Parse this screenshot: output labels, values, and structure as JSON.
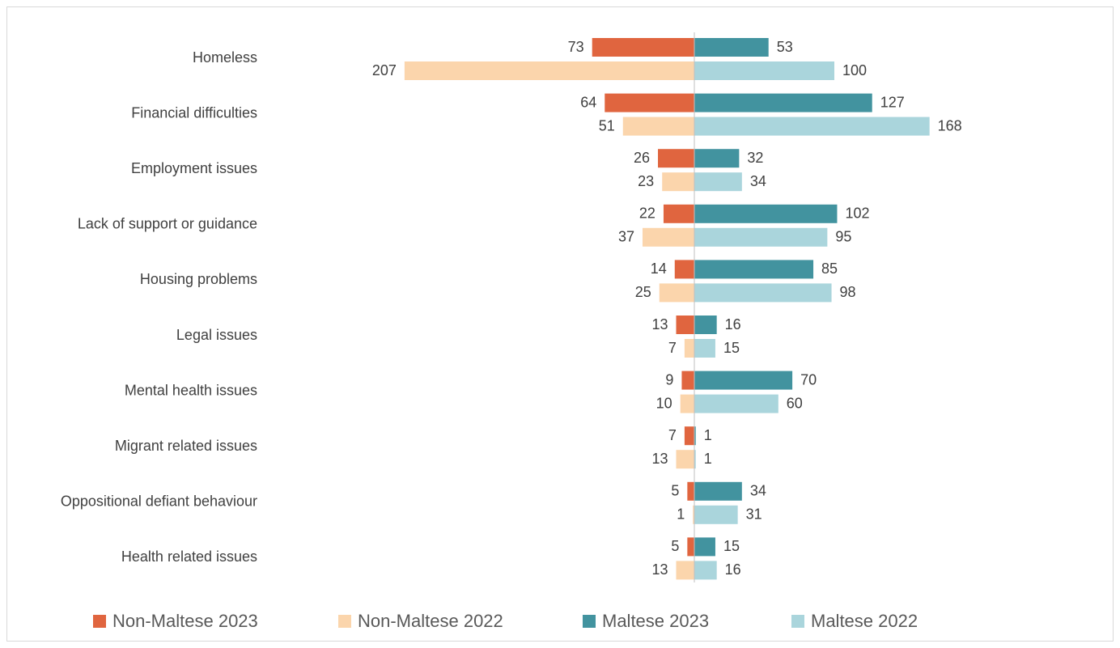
{
  "chart_data": {
    "type": "butterfly-bar",
    "categories": [
      "Homeless",
      "Financial difficulties",
      "Employment issues",
      "Lack of support or guidance",
      "Housing problems",
      "Legal issues",
      "Mental health issues",
      "Migrant related issues",
      "Oppositional defiant behaviour",
      "Health related issues"
    ],
    "series": [
      {
        "name": "Non-Maltese 2023",
        "color": "#e0653f",
        "values": [
          73,
          64,
          26,
          22,
          14,
          13,
          9,
          7,
          5,
          5
        ]
      },
      {
        "name": "Non-Maltese 2022",
        "color": "#fbd5ac",
        "values": [
          207,
          51,
          23,
          37,
          25,
          7,
          10,
          13,
          1,
          13
        ]
      },
      {
        "name": "Maltese 2023",
        "color": "#42939f",
        "values": [
          53,
          127,
          32,
          102,
          85,
          16,
          70,
          1,
          34,
          15
        ]
      },
      {
        "name": "Maltese 2022",
        "color": "#aad5dc",
        "values": [
          100,
          168,
          34,
          95,
          98,
          15,
          60,
          1,
          31,
          16
        ]
      }
    ],
    "legend": "bottom"
  }
}
